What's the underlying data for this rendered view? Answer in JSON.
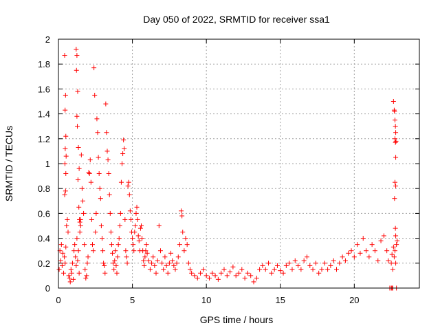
{
  "chart_data": {
    "type": "scatter",
    "title": "Day 050 of 2022, SRMTID for receiver ssa1",
    "xlabel": "GPS time / hours",
    "ylabel": "SRMTID / TECUs",
    "xlim": [
      0,
      24.4
    ],
    "ylim": [
      0,
      2
    ],
    "xticks": [
      0,
      5,
      10,
      15,
      20
    ],
    "xtick_labels": [
      "0",
      "5",
      "10",
      "15",
      "20"
    ],
    "yticks": [
      0,
      0.2,
      0.4,
      0.6,
      0.8,
      1,
      1.2,
      1.4,
      1.6,
      1.8,
      2
    ],
    "ytick_labels": [
      "0",
      "0.2",
      "0.4",
      "0.6",
      "0.8",
      "1",
      "1.2",
      "1.4",
      "1.6",
      "1.8",
      "2"
    ],
    "grid": true,
    "marker": "+",
    "marker_color": "#ff0000",
    "series": [
      {
        "name": "SRMTID",
        "points": [
          [
            0.05,
            0.15
          ],
          [
            0.1,
            0.3
          ],
          [
            0.15,
            0.22
          ],
          [
            0.2,
            0.35
          ],
          [
            0.25,
            0.18
          ],
          [
            0.3,
            0.28
          ],
          [
            0.35,
            0.12
          ],
          [
            0.4,
            0.25
          ],
          [
            0.45,
            0.2
          ],
          [
            0.5,
            0.33
          ],
          [
            0.42,
            1.87
          ],
          [
            0.48,
            1.55
          ],
          [
            0.45,
            1.43
          ],
          [
            0.5,
            1.22
          ],
          [
            0.46,
            1.12
          ],
          [
            0.52,
            1.06
          ],
          [
            0.44,
            1.0
          ],
          [
            0.5,
            0.92
          ],
          [
            0.42,
            0.75
          ],
          [
            0.48,
            0.78
          ],
          [
            0.55,
            0.5
          ],
          [
            0.6,
            0.55
          ],
          [
            0.65,
            0.45
          ],
          [
            0.7,
            0.1
          ],
          [
            0.75,
            0.08
          ],
          [
            0.8,
            0.05
          ],
          [
            0.85,
            0.15
          ],
          [
            0.9,
            0.12
          ],
          [
            0.95,
            0.2
          ],
          [
            1.0,
            0.07
          ],
          [
            1.05,
            0.3
          ],
          [
            1.1,
            0.35
          ],
          [
            1.15,
            0.25
          ],
          [
            1.2,
            0.18
          ],
          [
            1.25,
            0.4
          ],
          [
            1.3,
            0.22
          ],
          [
            1.35,
            0.3
          ],
          [
            1.4,
            0.12
          ],
          [
            1.45,
            0.45
          ],
          [
            1.5,
            0.5
          ],
          [
            1.2,
            1.92
          ],
          [
            1.25,
            1.87
          ],
          [
            1.22,
            1.75
          ],
          [
            1.3,
            1.58
          ],
          [
            1.25,
            1.38
          ],
          [
            1.28,
            1.3
          ],
          [
            1.35,
            1.13
          ],
          [
            1.4,
            0.96
          ],
          [
            1.32,
            0.87
          ],
          [
            1.38,
            0.65
          ],
          [
            1.42,
            0.55
          ],
          [
            1.45,
            0.53
          ],
          [
            1.5,
            0.55
          ],
          [
            1.55,
            1.07
          ],
          [
            1.6,
            0.8
          ],
          [
            1.65,
            0.7
          ],
          [
            1.7,
            0.6
          ],
          [
            1.75,
            0.35
          ],
          [
            1.8,
            0.15
          ],
          [
            1.85,
            0.08
          ],
          [
            1.9,
            0.1
          ],
          [
            1.95,
            0.2
          ],
          [
            2.0,
            0.25
          ],
          [
            2.05,
            0.93
          ],
          [
            2.1,
            0.92
          ],
          [
            2.15,
            1.03
          ],
          [
            2.2,
            0.85
          ],
          [
            2.25,
            0.55
          ],
          [
            2.3,
            0.35
          ],
          [
            2.35,
            0.3
          ],
          [
            2.4,
            1.77
          ],
          [
            2.45,
            1.55
          ],
          [
            2.5,
            0.45
          ],
          [
            2.55,
            0.6
          ],
          [
            2.6,
            1.36
          ],
          [
            2.65,
            1.25
          ],
          [
            2.7,
            1.05
          ],
          [
            2.75,
            0.92
          ],
          [
            2.8,
            0.8
          ],
          [
            2.85,
            0.72
          ],
          [
            2.9,
            0.5
          ],
          [
            2.95,
            0.4
          ],
          [
            3.0,
            0.3
          ],
          [
            3.05,
            0.2
          ],
          [
            3.1,
            0.18
          ],
          [
            3.15,
            0.12
          ],
          [
            3.2,
            1.48
          ],
          [
            3.25,
            1.25
          ],
          [
            3.3,
            1.1
          ],
          [
            3.35,
            1.03
          ],
          [
            3.4,
            0.92
          ],
          [
            3.45,
            0.75
          ],
          [
            3.5,
            0.6
          ],
          [
            3.55,
            0.45
          ],
          [
            3.6,
            0.35
          ],
          [
            3.65,
            0.28
          ],
          [
            3.7,
            0.2
          ],
          [
            3.75,
            0.15
          ],
          [
            3.8,
            0.22
          ],
          [
            3.85,
            0.3
          ],
          [
            3.9,
            0.18
          ],
          [
            3.95,
            0.12
          ],
          [
            4.0,
            0.25
          ],
          [
            4.05,
            0.35
          ],
          [
            4.1,
            0.4
          ],
          [
            4.15,
            0.5
          ],
          [
            4.2,
            0.6
          ],
          [
            4.25,
            0.85
          ],
          [
            4.3,
            1.0
          ],
          [
            4.35,
            1.08
          ],
          [
            4.4,
            1.19
          ],
          [
            4.45,
            1.12
          ],
          [
            4.5,
            0.55
          ],
          [
            4.55,
            0.3
          ],
          [
            4.6,
            0.25
          ],
          [
            4.65,
            0.2
          ],
          [
            4.7,
            0.82
          ],
          [
            4.75,
            0.85
          ],
          [
            4.8,
            0.75
          ],
          [
            4.85,
            0.62
          ],
          [
            4.9,
            0.55
          ],
          [
            4.95,
            0.45
          ],
          [
            5.0,
            0.4
          ],
          [
            5.05,
            0.35
          ],
          [
            5.1,
            0.3
          ],
          [
            5.15,
            0.45
          ],
          [
            5.2,
            0.5
          ],
          [
            5.25,
            0.6
          ],
          [
            5.3,
            0.65
          ],
          [
            5.35,
            0.55
          ],
          [
            5.4,
            0.42
          ],
          [
            5.45,
            0.38
          ],
          [
            5.5,
            0.3
          ],
          [
            5.55,
            0.48
          ],
          [
            5.6,
            0.5
          ],
          [
            5.65,
            0.4
          ],
          [
            5.7,
            0.3
          ],
          [
            5.75,
            0.22
          ],
          [
            5.8,
            0.18
          ],
          [
            5.85,
            0.25
          ],
          [
            5.9,
            0.3
          ],
          [
            5.95,
            0.35
          ],
          [
            6.0,
            0.28
          ],
          [
            6.1,
            0.22
          ],
          [
            6.2,
            0.15
          ],
          [
            6.3,
            0.2
          ],
          [
            6.4,
            0.25
          ],
          [
            6.5,
            0.18
          ],
          [
            6.6,
            0.12
          ],
          [
            6.7,
            0.22
          ],
          [
            6.8,
            0.5
          ],
          [
            6.9,
            0.3
          ],
          [
            7.0,
            0.2
          ],
          [
            7.1,
            0.15
          ],
          [
            7.2,
            0.25
          ],
          [
            7.3,
            0.18
          ],
          [
            7.4,
            0.12
          ],
          [
            7.5,
            0.2
          ],
          [
            7.6,
            0.28
          ],
          [
            7.7,
            0.22
          ],
          [
            7.8,
            0.18
          ],
          [
            7.9,
            0.15
          ],
          [
            8.0,
            0.2
          ],
          [
            8.1,
            0.25
          ],
          [
            8.2,
            0.35
          ],
          [
            8.3,
            0.62
          ],
          [
            8.35,
            0.58
          ],
          [
            8.4,
            0.45
          ],
          [
            8.5,
            0.3
          ],
          [
            8.6,
            0.4
          ],
          [
            8.7,
            0.35
          ],
          [
            8.8,
            0.2
          ],
          [
            8.9,
            0.15
          ],
          [
            9.0,
            0.12
          ],
          [
            9.2,
            0.1
          ],
          [
            9.4,
            0.08
          ],
          [
            9.6,
            0.12
          ],
          [
            9.8,
            0.15
          ],
          [
            10.0,
            0.1
          ],
          [
            10.2,
            0.08
          ],
          [
            10.4,
            0.12
          ],
          [
            10.6,
            0.1
          ],
          [
            10.8,
            0.07
          ],
          [
            11.0,
            0.12
          ],
          [
            11.2,
            0.15
          ],
          [
            11.4,
            0.1
          ],
          [
            11.6,
            0.13
          ],
          [
            11.8,
            0.17
          ],
          [
            12.0,
            0.1
          ],
          [
            12.2,
            0.12
          ],
          [
            12.4,
            0.15
          ],
          [
            12.6,
            0.08
          ],
          [
            12.8,
            0.12
          ],
          [
            13.0,
            0.1
          ],
          [
            13.2,
            0.05
          ],
          [
            13.4,
            0.08
          ],
          [
            13.6,
            0.15
          ],
          [
            13.8,
            0.18
          ],
          [
            14.0,
            0.15
          ],
          [
            14.2,
            0.2
          ],
          [
            14.4,
            0.12
          ],
          [
            14.6,
            0.15
          ],
          [
            14.8,
            0.18
          ],
          [
            15.0,
            0.14
          ],
          [
            15.2,
            0.12
          ],
          [
            15.4,
            0.18
          ],
          [
            15.6,
            0.2
          ],
          [
            15.8,
            0.15
          ],
          [
            16.0,
            0.22
          ],
          [
            16.2,
            0.18
          ],
          [
            16.4,
            0.15
          ],
          [
            16.6,
            0.22
          ],
          [
            16.8,
            0.25
          ],
          [
            17.0,
            0.18
          ],
          [
            17.2,
            0.15
          ],
          [
            17.4,
            0.2
          ],
          [
            17.6,
            0.12
          ],
          [
            17.8,
            0.15
          ],
          [
            18.0,
            0.2
          ],
          [
            18.2,
            0.15
          ],
          [
            18.4,
            0.18
          ],
          [
            18.6,
            0.22
          ],
          [
            18.8,
            0.15
          ],
          [
            19.0,
            0.2
          ],
          [
            19.2,
            0.25
          ],
          [
            19.4,
            0.22
          ],
          [
            19.6,
            0.28
          ],
          [
            19.8,
            0.3
          ],
          [
            20.0,
            0.25
          ],
          [
            20.2,
            0.35
          ],
          [
            20.4,
            0.28
          ],
          [
            20.6,
            0.4
          ],
          [
            20.8,
            0.3
          ],
          [
            21.0,
            0.25
          ],
          [
            21.2,
            0.35
          ],
          [
            21.4,
            0.3
          ],
          [
            21.6,
            0.22
          ],
          [
            21.8,
            0.38
          ],
          [
            22.0,
            0.42
          ],
          [
            22.2,
            0.3
          ],
          [
            22.3,
            0.22
          ],
          [
            22.4,
            0.0
          ],
          [
            22.5,
            0.0
          ],
          [
            22.55,
            0.0
          ],
          [
            22.6,
            0.0
          ],
          [
            22.65,
            1.5
          ],
          [
            22.7,
            1.43
          ],
          [
            22.72,
            1.42
          ],
          [
            22.75,
            1.35
          ],
          [
            22.78,
            1.3
          ],
          [
            22.8,
            1.25
          ],
          [
            22.75,
            1.2
          ],
          [
            22.82,
            1.18
          ],
          [
            22.78,
            1.17
          ],
          [
            22.8,
            1.05
          ],
          [
            22.75,
            0.85
          ],
          [
            22.8,
            0.82
          ],
          [
            22.72,
            0.72
          ],
          [
            22.78,
            0.48
          ],
          [
            22.8,
            0.42
          ],
          [
            22.85,
            0.35
          ],
          [
            22.7,
            0.25
          ],
          [
            22.8,
            0.2
          ],
          [
            22.85,
            0.0
          ],
          [
            22.75,
            0.3
          ],
          [
            22.65,
            0.33
          ],
          [
            22.9,
            0.38
          ],
          [
            22.55,
            0.27
          ],
          [
            22.6,
            0.15
          ],
          [
            22.5,
            0.2
          ]
        ]
      }
    ]
  }
}
